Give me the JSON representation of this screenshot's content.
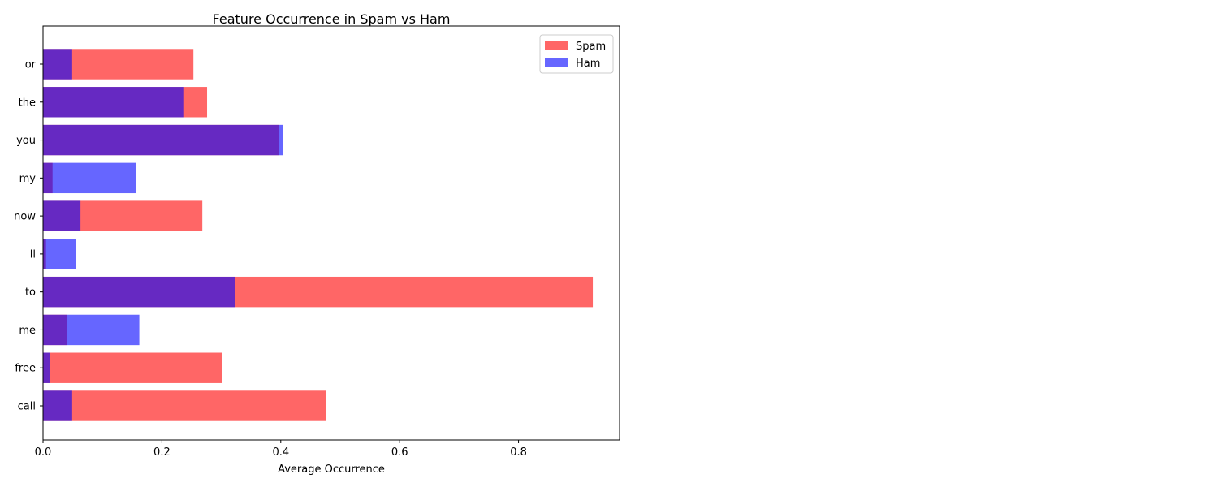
{
  "chart_data": {
    "type": "bar",
    "orientation": "horizontal",
    "title": "Feature Occurrence in Spam vs Ham",
    "xlabel": "Average Occurrence",
    "ylabel": "",
    "xlim": [
      0,
      0.97
    ],
    "xticks": [
      0.0,
      0.2,
      0.4,
      0.6,
      0.8
    ],
    "xtick_labels": [
      "0.0",
      "0.2",
      "0.4",
      "0.6",
      "0.8"
    ],
    "categories": [
      "call",
      "free",
      "me",
      "to",
      "ll",
      "now",
      "my",
      "you",
      "the",
      "or"
    ],
    "series": [
      {
        "name": "Spam",
        "color": "#ff0000",
        "opacity": 0.6,
        "values": [
          0.476,
          0.301,
          0.041,
          0.925,
          0.005,
          0.268,
          0.016,
          0.397,
          0.276,
          0.253
        ]
      },
      {
        "name": "Ham",
        "color": "#0000ff",
        "opacity": 0.6,
        "values": [
          0.049,
          0.012,
          0.162,
          0.323,
          0.056,
          0.063,
          0.157,
          0.404,
          0.236,
          0.049
        ]
      }
    ],
    "grid": false,
    "legend_position": "top-right"
  }
}
